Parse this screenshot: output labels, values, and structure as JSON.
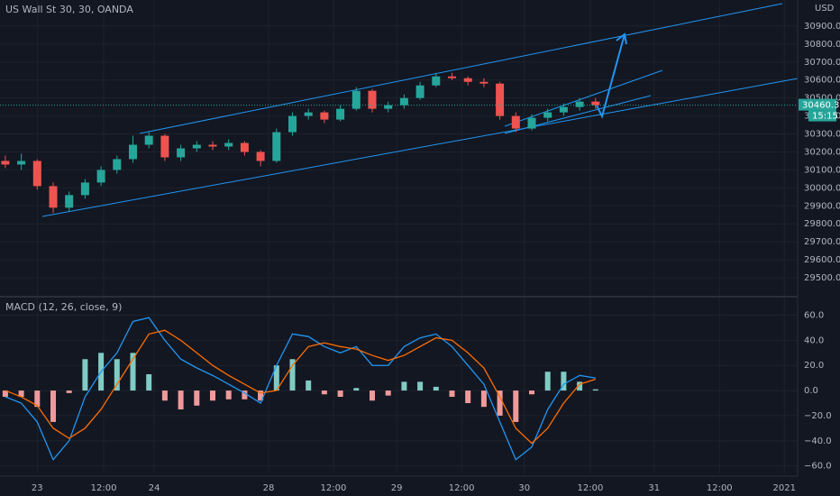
{
  "chart_data": [
    {
      "type": "candlestick",
      "title": "US Wall St 30, 30, OANDA",
      "currency": "USD",
      "x": [
        1,
        4,
        7,
        10,
        13,
        16,
        19,
        22,
        25,
        28,
        31,
        34,
        37,
        40,
        43,
        46,
        49,
        52,
        55,
        58,
        61,
        64,
        67,
        70,
        73,
        76,
        79,
        82,
        85,
        88,
        91,
        94,
        97,
        100,
        103,
        106,
        109,
        112
      ],
      "open": [
        30150,
        30130,
        30150,
        30010,
        29890,
        29960,
        30030,
        30100,
        30160,
        30240,
        30290,
        30170,
        30220,
        30240,
        30230,
        30250,
        30200,
        30150,
        30310,
        30400,
        30420,
        30380,
        30440,
        30540,
        30440,
        30460,
        30500,
        30570,
        30620,
        30610,
        30590,
        30580,
        30400,
        30330,
        30390,
        30420,
        30450,
        30480
      ],
      "high": [
        30180,
        30190,
        30160,
        30030,
        29980,
        30050,
        30120,
        30180,
        30290,
        30310,
        30300,
        30240,
        30260,
        30260,
        30270,
        30260,
        30210,
        30330,
        30420,
        30440,
        30430,
        30460,
        30560,
        30550,
        30480,
        30520,
        30590,
        30640,
        30640,
        30620,
        30610,
        30590,
        30420,
        30410,
        30440,
        30470,
        30500,
        30500
      ],
      "low": [
        30110,
        30100,
        29990,
        29860,
        29870,
        29940,
        30010,
        30080,
        30140,
        30220,
        30150,
        30150,
        30200,
        30210,
        30210,
        30180,
        30120,
        30140,
        30290,
        30380,
        30360,
        30370,
        30430,
        30420,
        30420,
        30440,
        30490,
        30560,
        30600,
        30570,
        30560,
        30380,
        30310,
        30320,
        30370,
        30400,
        30430,
        30440
      ],
      "close": [
        30130,
        30150,
        30010,
        29890,
        29960,
        30030,
        30100,
        30160,
        30240,
        30290,
        30170,
        30220,
        30240,
        30230,
        30250,
        30200,
        30150,
        30310,
        30400,
        30420,
        30380,
        30440,
        30540,
        30440,
        30460,
        30500,
        30570,
        30620,
        30610,
        30590,
        30580,
        30400,
        30330,
        30390,
        30420,
        30450,
        30480,
        30460
      ],
      "up_color": "#26a69a",
      "down_color": "#ef5350",
      "last_price": 30460.3,
      "countdown": "15:15",
      "last_price_color": "#26a69a",
      "xlim": [
        0,
        150
      ],
      "ylim": [
        29400,
        31045
      ],
      "yticks": [
        {
          "value": 29500,
          "label": "29500.0"
        },
        {
          "value": 29600,
          "label": "29600.0"
        },
        {
          "value": 29700,
          "label": "29700.0"
        },
        {
          "value": 29800,
          "label": "29800.0"
        },
        {
          "value": 29900,
          "label": "29900.0"
        },
        {
          "value": 30000,
          "label": "30000.0"
        },
        {
          "value": 30100,
          "label": "30100.0"
        },
        {
          "value": 30200,
          "label": "30200.0"
        },
        {
          "value": 30300,
          "label": "30300.0"
        },
        {
          "value": 30400,
          "label": "30400.0"
        },
        {
          "value": 30500,
          "label": "30500.0"
        },
        {
          "value": 30600,
          "label": "30600.0"
        },
        {
          "value": 30700,
          "label": "30700.0"
        },
        {
          "value": 30800,
          "label": "30800.0"
        },
        {
          "value": 30900,
          "label": "30900.0"
        }
      ],
      "grid": true
    },
    {
      "type": "macd",
      "title": "MACD (12, 26, close, 9)",
      "x": [
        1,
        4,
        7,
        10,
        13,
        16,
        19,
        22,
        25,
        28,
        31,
        34,
        37,
        40,
        43,
        46,
        49,
        52,
        55,
        58,
        61,
        64,
        67,
        70,
        73,
        76,
        79,
        82,
        85,
        88,
        91,
        94,
        97,
        100,
        103,
        106,
        109,
        112
      ],
      "histogram": [
        -5,
        -5,
        -13,
        -25,
        -2,
        25,
        30,
        25,
        30,
        13,
        -8,
        -15,
        -12,
        -8,
        -7,
        -7,
        -8,
        20,
        25,
        8,
        -3,
        -5,
        2,
        -8,
        -4,
        7,
        7,
        3,
        -5,
        -10,
        -13,
        -20,
        -25,
        -3,
        15,
        15,
        7,
        1
      ],
      "histogram_up_color": "#80cbc4",
      "histogram_down_color": "#ef9a9a",
      "series": [
        {
          "color": "#2196f3",
          "values": [
            -5,
            -10,
            -25,
            -55,
            -40,
            -5,
            15,
            30,
            55,
            58,
            40,
            25,
            18,
            12,
            5,
            -2,
            -10,
            20,
            45,
            43,
            35,
            30,
            35,
            20,
            20,
            35,
            42,
            45,
            35,
            20,
            5,
            -25,
            -55,
            -45,
            -15,
            5,
            12,
            10
          ]
        },
        {
          "color": "#ff6d00",
          "values": [
            0,
            -5,
            -12,
            -30,
            -38,
            -30,
            -15,
            5,
            25,
            45,
            48,
            40,
            30,
            20,
            12,
            5,
            -2,
            0,
            20,
            35,
            38,
            35,
            33,
            28,
            24,
            28,
            35,
            42,
            40,
            30,
            18,
            -5,
            -30,
            -42,
            -30,
            -10,
            5,
            9
          ]
        }
      ],
      "xlim": [
        0,
        150
      ],
      "ylim": [
        -66,
        74
      ],
      "yticks": [
        {
          "value": -60,
          "label": "−60.0"
        },
        {
          "value": -40,
          "label": "−40.0"
        },
        {
          "value": -20,
          "label": "−20.0"
        },
        {
          "value": 0,
          "label": "0.0"
        },
        {
          "value": 20,
          "label": "20.0"
        },
        {
          "value": 40,
          "label": "40.0"
        },
        {
          "value": 60,
          "label": "60.0"
        }
      ],
      "xticks": [
        {
          "value": 7,
          "label": "23"
        },
        {
          "value": 19.5,
          "label": "12:00"
        },
        {
          "value": 29,
          "label": "24"
        },
        {
          "value": 50.5,
          "label": "28"
        },
        {
          "value": 62.7,
          "label": "12:00"
        },
        {
          "value": 74.6,
          "label": "29"
        },
        {
          "value": 86.8,
          "label": "12:00"
        },
        {
          "value": 98.6,
          "label": "30"
        },
        {
          "value": 111,
          "label": "12:00"
        },
        {
          "value": 123,
          "label": "31"
        },
        {
          "value": 135.3,
          "label": "12:00"
        },
        {
          "value": 147.5,
          "label": "2021"
        }
      ],
      "grid": true
    }
  ]
}
